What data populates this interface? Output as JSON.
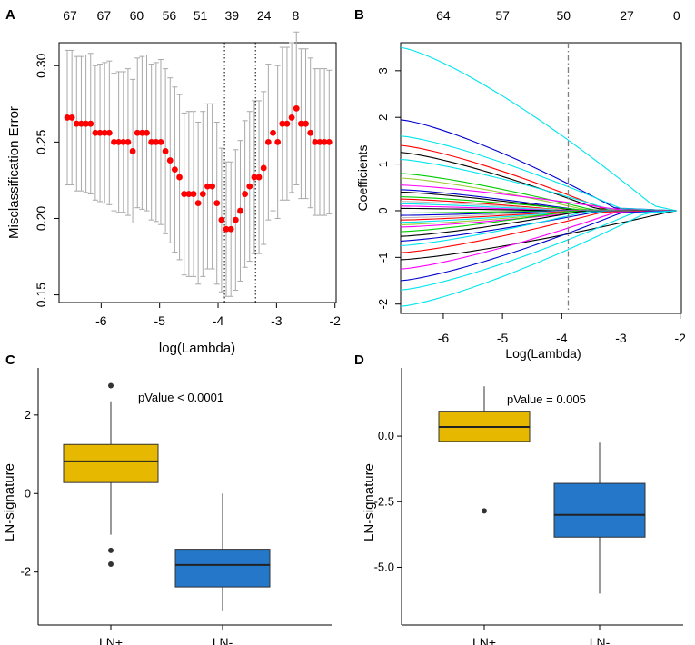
{
  "chart_data": [
    {
      "panel": "A",
      "type": "scatter",
      "xlabel": "log(Lambda)",
      "ylabel": "Misclassification Error",
      "xlim": [
        -6.72,
        -1.98
      ],
      "ylim": [
        0.145,
        0.315
      ],
      "xticks": [
        "-6",
        "-5",
        "-4",
        "-3",
        "-2"
      ],
      "yticks": [
        "0.15",
        "0.20",
        "0.25",
        "0.30"
      ],
      "top_axis_labels": [
        "67",
        "67",
        "60",
        "56",
        "51",
        "39",
        "24",
        "8"
      ],
      "reference_lines_x": [
        -3.89,
        -3.36
      ],
      "series": [
        {
          "name": "cv error",
          "x": [
            -6.58,
            -6.5,
            -6.42,
            -6.34,
            -6.26,
            -6.18,
            -6.1,
            -6.02,
            -5.94,
            -5.86,
            -5.78,
            -5.7,
            -5.62,
            -5.54,
            -5.46,
            -5.38,
            -5.3,
            -5.22,
            -5.14,
            -5.06,
            -4.98,
            -4.9,
            -4.82,
            -4.74,
            -4.66,
            -4.58,
            -4.5,
            -4.42,
            -4.34,
            -4.26,
            -4.18,
            -4.1,
            -4.02,
            -3.94,
            -3.86,
            -3.78,
            -3.7,
            -3.62,
            -3.54,
            -3.46,
            -3.38,
            -3.3,
            -3.22,
            -3.14,
            -3.06,
            -2.98,
            -2.9,
            -2.82,
            -2.74,
            -2.66,
            -2.58,
            -2.5,
            -2.42,
            -2.34,
            -2.26,
            -2.18,
            -2.1
          ],
          "y": [
            0.266,
            0.266,
            0.262,
            0.262,
            0.262,
            0.262,
            0.256,
            0.256,
            0.256,
            0.256,
            0.25,
            0.25,
            0.25,
            0.25,
            0.244,
            0.256,
            0.256,
            0.256,
            0.25,
            0.25,
            0.25,
            0.244,
            0.238,
            0.232,
            0.227,
            0.216,
            0.216,
            0.216,
            0.21,
            0.216,
            0.221,
            0.221,
            0.21,
            0.199,
            0.193,
            0.193,
            0.199,
            0.205,
            0.216,
            0.221,
            0.227,
            0.227,
            0.233,
            0.25,
            0.256,
            0.25,
            0.262,
            0.262,
            0.266,
            0.272,
            0.262,
            0.262,
            0.256,
            0.25,
            0.25,
            0.25,
            0.25
          ],
          "lower": [
            0.222,
            0.222,
            0.218,
            0.218,
            0.217,
            0.216,
            0.212,
            0.211,
            0.21,
            0.209,
            0.205,
            0.204,
            0.204,
            0.202,
            0.197,
            0.207,
            0.206,
            0.205,
            0.199,
            0.198,
            0.196,
            0.19,
            0.184,
            0.178,
            0.173,
            0.163,
            0.162,
            0.162,
            0.157,
            0.162,
            0.167,
            0.167,
            0.157,
            0.152,
            0.149,
            0.149,
            0.153,
            0.159,
            0.168,
            0.172,
            0.177,
            0.177,
            0.183,
            0.199,
            0.205,
            0.2,
            0.212,
            0.212,
            0.217,
            0.222,
            0.213,
            0.213,
            0.207,
            0.202,
            0.202,
            0.202,
            0.203
          ],
          "upper": [
            0.31,
            0.31,
            0.306,
            0.306,
            0.307,
            0.308,
            0.3,
            0.301,
            0.302,
            0.303,
            0.295,
            0.296,
            0.296,
            0.298,
            0.291,
            0.305,
            0.306,
            0.307,
            0.301,
            0.302,
            0.304,
            0.298,
            0.292,
            0.286,
            0.281,
            0.269,
            0.27,
            0.27,
            0.263,
            0.27,
            0.275,
            0.275,
            0.263,
            0.246,
            0.237,
            0.237,
            0.245,
            0.251,
            0.264,
            0.27,
            0.277,
            0.277,
            0.283,
            0.301,
            0.307,
            0.3,
            0.312,
            0.312,
            0.315,
            0.322,
            0.311,
            0.311,
            0.305,
            0.298,
            0.298,
            0.298,
            0.297
          ]
        }
      ]
    },
    {
      "panel": "B",
      "type": "line",
      "xlabel": "Log(Lambda)",
      "ylabel": "Coefficients",
      "xlim": [
        -6.72,
        -1.98
      ],
      "ylim": [
        -2.2,
        3.6
      ],
      "xticks": [
        "-6",
        "-5",
        "-4",
        "-3",
        "-2"
      ],
      "yticks": [
        "-2",
        "-1",
        "0",
        "1",
        "2",
        "3"
      ],
      "top_axis_labels": [
        "64",
        "57",
        "50",
        "27",
        "0"
      ],
      "reference_lines_x": [
        -3.89
      ],
      "x_start": -6.72,
      "x_end": -2.06,
      "series": [
        {
          "color": "#00e5ee",
          "start": 3.5,
          "vanish": -2.45
        },
        {
          "color": "#0000cd",
          "start": 1.95,
          "vanish": -3.1
        },
        {
          "color": "#00e5ee",
          "start": 1.6,
          "vanish": -3.0
        },
        {
          "color": "#ff0000",
          "start": 1.4,
          "vanish": -3.3
        },
        {
          "color": "#000000",
          "start": 1.25,
          "vanish": -3.4
        },
        {
          "color": "#00e5ee",
          "start": 1.1,
          "vanish": -3.2
        },
        {
          "color": "#00cd00",
          "start": 0.8,
          "vanish": -3.5
        },
        {
          "color": "#9acd32",
          "start": 0.7,
          "vanish": -3.6
        },
        {
          "color": "#ff00ff",
          "start": 0.55,
          "vanish": -3.0
        },
        {
          "color": "#0000cd",
          "start": 0.45,
          "vanish": -3.7
        },
        {
          "color": "#000000",
          "start": 0.4,
          "vanish": -3.8
        },
        {
          "color": "#00cd00",
          "start": 0.3,
          "vanish": -3.6
        },
        {
          "color": "#ff0000",
          "start": 0.25,
          "vanish": -3.9
        },
        {
          "color": "#bebebe",
          "start": 0.2,
          "vanish": -3.9
        },
        {
          "color": "#00e5ee",
          "start": 0.15,
          "vanish": -4.0
        },
        {
          "color": "#ff00ff",
          "start": 0.1,
          "vanish": -4.1
        },
        {
          "color": "#000000",
          "start": 0.05,
          "vanish": -4.2
        },
        {
          "color": "#00cd00",
          "start": -0.05,
          "vanish": -4.1
        },
        {
          "color": "#0000cd",
          "start": -0.1,
          "vanish": -4.0
        },
        {
          "color": "#bebebe",
          "start": -0.15,
          "vanish": -3.9
        },
        {
          "color": "#ff0000",
          "start": -0.2,
          "vanish": -3.8
        },
        {
          "color": "#00e5ee",
          "start": -0.25,
          "vanish": -3.7
        },
        {
          "color": "#9acd32",
          "start": -0.3,
          "vanish": -3.6
        },
        {
          "color": "#ff00ff",
          "start": -0.35,
          "vanish": -3.5
        },
        {
          "color": "#00cd00",
          "start": -0.45,
          "vanish": -3.9
        },
        {
          "color": "#000000",
          "start": -0.55,
          "vanish": -3.7
        },
        {
          "color": "#0000cd",
          "start": -0.65,
          "vanish": -3.4
        },
        {
          "color": "#00e5ee",
          "start": -0.75,
          "vanish": -3.6
        },
        {
          "color": "#ff0000",
          "start": -0.9,
          "vanish": -3.3
        },
        {
          "color": "#000000",
          "start": -1.05,
          "vanish": -2.2
        },
        {
          "color": "#ff00ff",
          "start": -1.25,
          "vanish": -3.1
        },
        {
          "color": "#0000cd",
          "start": -1.5,
          "vanish": -3.0
        },
        {
          "color": "#00e5ee",
          "start": -1.7,
          "vanish": -2.8
        },
        {
          "color": "#00e5ee",
          "start": -2.05,
          "vanish": -2.6
        }
      ]
    },
    {
      "panel": "C",
      "type": "box",
      "ylabel": "LN-signature",
      "ylim": [
        -3.35,
        3.2
      ],
      "yticks": [
        "-2",
        "0",
        "2"
      ],
      "annotation": "pValue < 0.0001",
      "categories": [
        "LN+",
        "LN-"
      ],
      "boxes": [
        {
          "label": "LN+",
          "color": "#e6b800",
          "q1": 0.28,
          "median": 0.82,
          "q3": 1.25,
          "whisker_low": -1.05,
          "whisker_high": 2.35,
          "outliers": [
            2.75,
            -1.45,
            -1.8
          ]
        },
        {
          "label": "LN-",
          "color": "#2477c9",
          "q1": -2.38,
          "median": -1.82,
          "q3": -1.42,
          "whisker_low": -3.0,
          "whisker_high": 0.0,
          "outliers": []
        }
      ]
    },
    {
      "panel": "D",
      "type": "box",
      "ylabel": "LN-signature",
      "ylim": [
        -7.2,
        2.6
      ],
      "yticks": [
        "-5.0",
        "-2.5",
        "0.0"
      ],
      "annotation": "pValue = 0.005",
      "categories": [
        "LN+",
        "LN-"
      ],
      "boxes": [
        {
          "label": "LN+",
          "color": "#e6b800",
          "q1": -0.2,
          "median": 0.35,
          "q3": 0.95,
          "whisker_low": -0.2,
          "whisker_high": 1.9,
          "outliers": [
            -2.85
          ]
        },
        {
          "label": "LN-",
          "color": "#2477c9",
          "q1": -3.85,
          "median": -3.0,
          "q3": -1.8,
          "whisker_low": -6.0,
          "whisker_high": -0.25,
          "outliers": []
        }
      ]
    }
  ],
  "panel_labels": [
    "A",
    "B",
    "C",
    "D"
  ]
}
